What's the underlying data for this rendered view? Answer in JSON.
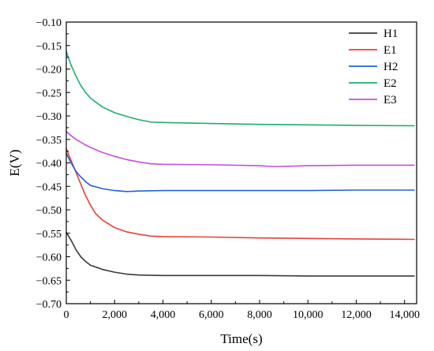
{
  "chart_data": {
    "type": "line",
    "xlabel": "Time(s)",
    "ylabel": "E(V)",
    "xlim": [
      0,
      14500
    ],
    "ylim": [
      -0.7,
      -0.1
    ],
    "x_ticks": [
      0,
      2000,
      4000,
      6000,
      8000,
      10000,
      12000,
      14000
    ],
    "x_tick_labels": [
      "0",
      "2,000",
      "4,000",
      "6,000",
      "8,000",
      "10,000",
      "12,000",
      "14,000"
    ],
    "y_ticks": [
      -0.1,
      -0.15,
      -0.2,
      -0.25,
      -0.3,
      -0.35,
      -0.4,
      -0.45,
      -0.5,
      -0.55,
      -0.6,
      -0.65,
      -0.7
    ],
    "y_tick_labels": [
      "−0.10",
      "−0.15",
      "−0.20",
      "−0.25",
      "−0.30",
      "−0.35",
      "−0.40",
      "−0.45",
      "−0.50",
      "−0.55",
      "−0.60",
      "−0.65",
      "−0.70"
    ],
    "grid": false,
    "legend_position": "top-right",
    "series": [
      {
        "name": "H1",
        "color": "#3a3a3a",
        "x": [
          0,
          200,
          400,
          600,
          800,
          1000,
          1500,
          2000,
          2500,
          3000,
          4000,
          6000,
          8000,
          10000,
          12000,
          14400
        ],
        "y": [
          -0.548,
          -0.565,
          -0.585,
          -0.6,
          -0.61,
          -0.618,
          -0.627,
          -0.633,
          -0.637,
          -0.639,
          -0.64,
          -0.64,
          -0.64,
          -0.641,
          -0.641,
          -0.641
        ]
      },
      {
        "name": "E1",
        "color": "#e8413a",
        "x": [
          0,
          200,
          400,
          600,
          800,
          1000,
          1200,
          1500,
          2000,
          2500,
          3000,
          3500,
          4000,
          6000,
          8000,
          10000,
          12000,
          14400
        ],
        "y": [
          -0.37,
          -0.395,
          -0.42,
          -0.445,
          -0.47,
          -0.49,
          -0.507,
          -0.522,
          -0.538,
          -0.547,
          -0.552,
          -0.556,
          -0.557,
          -0.558,
          -0.56,
          -0.561,
          -0.562,
          -0.563
        ]
      },
      {
        "name": "H2",
        "color": "#1f63d6",
        "x": [
          0,
          200,
          400,
          600,
          800,
          1000,
          1500,
          2000,
          2500,
          3000,
          4000,
          6000,
          8000,
          10000,
          12000,
          14400
        ],
        "y": [
          -0.38,
          -0.4,
          -0.418,
          -0.43,
          -0.44,
          -0.448,
          -0.455,
          -0.459,
          -0.461,
          -0.46,
          -0.459,
          -0.459,
          -0.459,
          -0.459,
          -0.458,
          -0.458
        ]
      },
      {
        "name": "E2",
        "color": "#1fae6b",
        "x": [
          0,
          200,
          400,
          600,
          800,
          1000,
          1500,
          2000,
          2500,
          3000,
          3500,
          4000,
          6000,
          8000,
          10000,
          12000,
          14400
        ],
        "y": [
          -0.163,
          -0.192,
          -0.215,
          -0.235,
          -0.25,
          -0.262,
          -0.281,
          -0.293,
          -0.301,
          -0.308,
          -0.313,
          -0.314,
          -0.316,
          -0.318,
          -0.319,
          -0.32,
          -0.321
        ]
      },
      {
        "name": "E3",
        "color": "#c44fe0",
        "x": [
          0,
          200,
          400,
          600,
          800,
          1000,
          1500,
          2000,
          2500,
          3000,
          3500,
          4000,
          6000,
          8000,
          8600,
          10000,
          12000,
          14400
        ],
        "y": [
          -0.333,
          -0.342,
          -0.35,
          -0.356,
          -0.362,
          -0.367,
          -0.378,
          -0.386,
          -0.393,
          -0.398,
          -0.402,
          -0.403,
          -0.404,
          -0.406,
          -0.408,
          -0.406,
          -0.405,
          -0.405
        ]
      }
    ]
  }
}
